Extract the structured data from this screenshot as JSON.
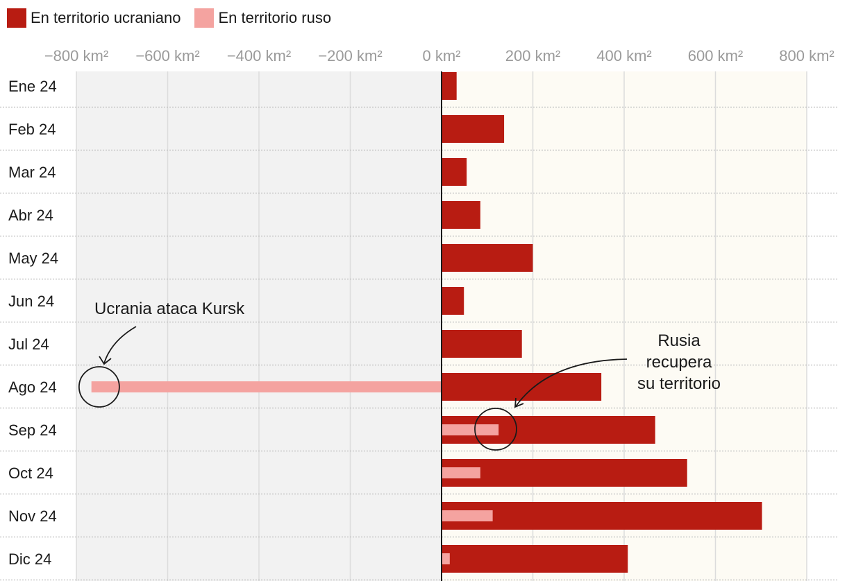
{
  "legend": {
    "ukraine_label": "En territorio ucraniano",
    "russia_label": "En territorio ruso"
  },
  "colors": {
    "ukraine": "#b81c12",
    "russia": "#f4a3a0",
    "left_bg": "#f2f2f2",
    "right_bg": "#fdfbf4"
  },
  "chart_data": {
    "type": "bar",
    "orientation": "horizontal",
    "x_unit": "km²",
    "xlim": [
      -800,
      800
    ],
    "x_ticks": [
      -800,
      -600,
      -400,
      -200,
      0,
      200,
      400,
      600,
      800
    ],
    "x_tick_labels": [
      "−800 km²",
      "−600 km²",
      "−400 km²",
      "−200 km²",
      "0 km²",
      "200 km²",
      "400 km²",
      "600 km²",
      "800 km²"
    ],
    "categories": [
      "Ene 24",
      "Feb 24",
      "Mar 24",
      "Abr 24",
      "May 24",
      "Jun 24",
      "Jul 24",
      "Ago 24",
      "Sep 24",
      "Oct 24",
      "Nov 24",
      "Dic 24"
    ],
    "series": [
      {
        "name": "En territorio ucraniano",
        "values": [
          33,
          137,
          55,
          85,
          200,
          49,
          176,
          350,
          468,
          538,
          702,
          408
        ]
      },
      {
        "name": "En territorio ruso",
        "values": [
          0,
          0,
          0,
          0,
          0,
          0,
          0,
          -767,
          125,
          85,
          112,
          18
        ]
      }
    ],
    "annotations": [
      {
        "text": "Ucrania ataca Kursk",
        "category": "Ago 24",
        "x": -750
      },
      {
        "text": "Rusia recupera su territorio",
        "lines": [
          "Rusia",
          "recupera",
          "su territorio"
        ],
        "category": "Sep 24",
        "x": 120
      }
    ]
  }
}
